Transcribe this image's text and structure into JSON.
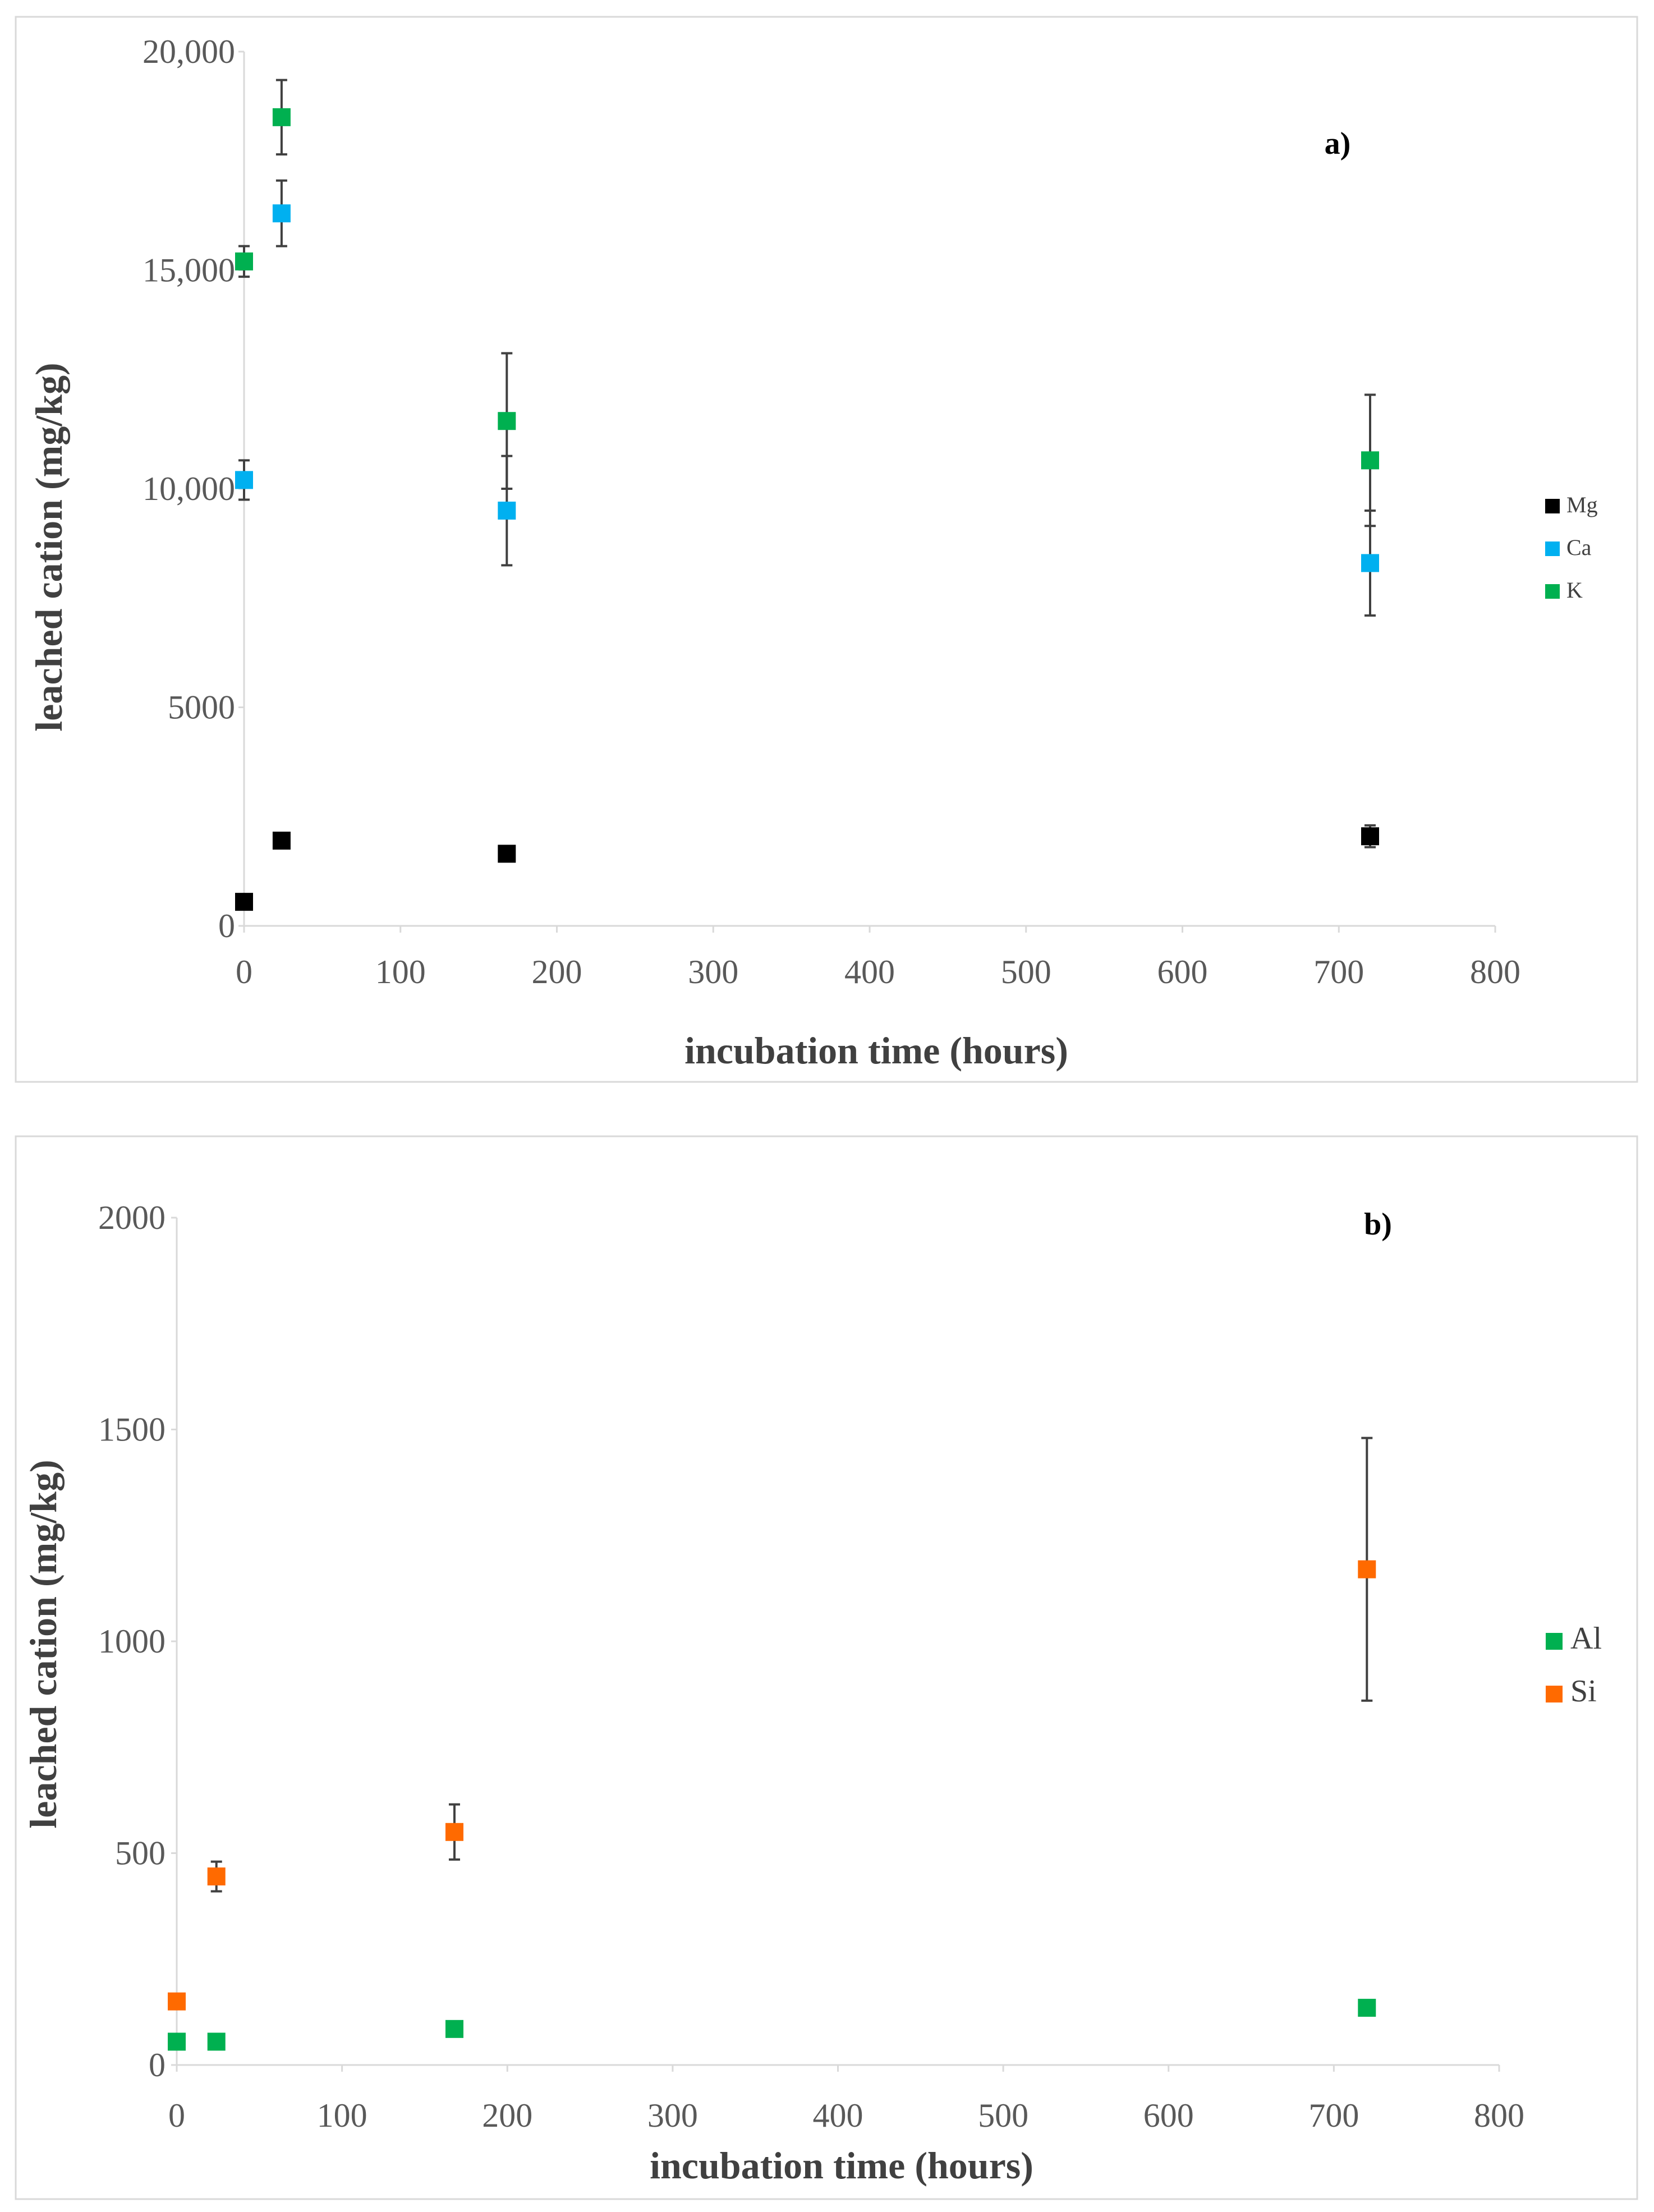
{
  "chart_data": [
    {
      "type": "scatter",
      "panel_label": "a)",
      "xlabel": "incubation time (hours)",
      "ylabel": "leached cation (mg/kg)",
      "xlim": [
        0,
        800
      ],
      "ylim": [
        0,
        20000
      ],
      "xticks": [
        0,
        100,
        200,
        300,
        400,
        500,
        600,
        700,
        800
      ],
      "xtick_labels": [
        "0",
        "100",
        "200",
        "300",
        "400",
        "500",
        "600",
        "700",
        "800"
      ],
      "yticks": [
        0,
        5000,
        10000,
        15000,
        20000
      ],
      "ytick_labels": [
        "0",
        "5000",
        "10,000",
        "15,000",
        "20,000"
      ],
      "legend_position": "right",
      "series": [
        {
          "name": "Mg",
          "color": "#000000",
          "x": [
            0,
            24,
            168,
            720
          ],
          "y": [
            550,
            1950,
            1650,
            2050
          ],
          "err": [
            0,
            0,
            150,
            250
          ]
        },
        {
          "name": "Ca",
          "color": "#00b0f0",
          "x": [
            0,
            24,
            168,
            720
          ],
          "y": [
            10200,
            16300,
            9500,
            8300
          ],
          "err": [
            450,
            750,
            1250,
            1200
          ]
        },
        {
          "name": "K",
          "color": "#00b050",
          "x": [
            0,
            24,
            168,
            720
          ],
          "y": [
            15200,
            18500,
            11550,
            10650
          ],
          "err": [
            350,
            850,
            1550,
            1500
          ]
        }
      ]
    },
    {
      "type": "scatter",
      "panel_label": "b)",
      "xlabel": "incubation time (hours)",
      "ylabel": "leached cation (mg/kg)",
      "xlim": [
        0,
        800
      ],
      "ylim": [
        0,
        2000
      ],
      "xticks": [
        0,
        100,
        200,
        300,
        400,
        500,
        600,
        700,
        800
      ],
      "xtick_labels": [
        "0",
        "100",
        "200",
        "300",
        "400",
        "500",
        "600",
        "700",
        "800"
      ],
      "yticks": [
        0,
        500,
        1000,
        1500,
        2000
      ],
      "ytick_labels": [
        "0",
        "500",
        "1000",
        "1500",
        "2000"
      ],
      "legend_position": "right",
      "series": [
        {
          "name": "Al",
          "color": "#00b050",
          "x": [
            0,
            24,
            168,
            720
          ],
          "y": [
            55,
            55,
            85,
            135
          ],
          "err": [
            0,
            0,
            0,
            0
          ]
        },
        {
          "name": "Si",
          "color": "#ff6a00",
          "x": [
            0,
            24,
            168,
            720
          ],
          "y": [
            150,
            445,
            550,
            1170
          ],
          "err": [
            0,
            35,
            65,
            310
          ]
        }
      ]
    }
  ]
}
